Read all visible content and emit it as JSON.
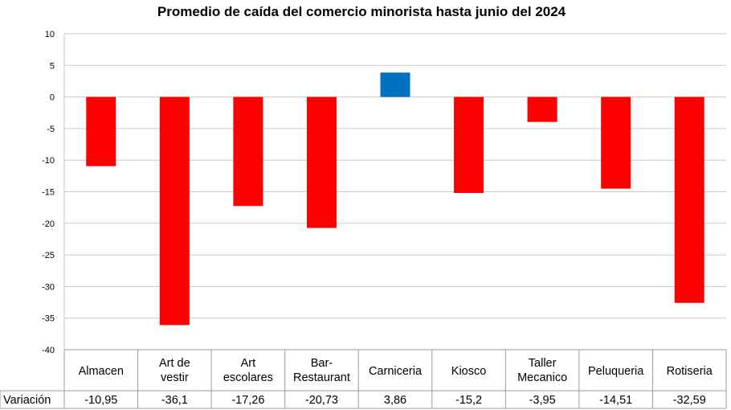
{
  "chart_data": {
    "type": "bar",
    "title": "Promedio de caída del comercio minorista hasta junio del 2024",
    "xlabel": "",
    "ylabel": "",
    "categories": [
      [
        "Almacen"
      ],
      [
        "Art de",
        "vestir"
      ],
      [
        "Art",
        "escolares"
      ],
      [
        "Bar-",
        "Restaurant"
      ],
      [
        "Carniceria"
      ],
      [
        "Kiosco"
      ],
      [
        "Taller",
        "Mecanico"
      ],
      [
        "Peluqueria"
      ],
      [
        "Rotiseria"
      ]
    ],
    "series": [
      {
        "name": "Variación",
        "values": [
          -10.95,
          -36.1,
          -17.26,
          -20.73,
          3.86,
          -15.2,
          -3.95,
          -14.51,
          -32.59
        ],
        "labels": [
          "-10,95",
          "-36,1",
          "-17,26",
          "-20,73",
          "3,86",
          "-15,2",
          "-3,95",
          "-14,51",
          "-32,59"
        ]
      }
    ],
    "ylim": [
      -40,
      10
    ],
    "yticks": [
      10,
      5,
      0,
      -5,
      -10,
      -15,
      -20,
      -25,
      -30,
      -35,
      -40
    ],
    "grid": true,
    "legend": "none",
    "colors": {
      "negative": "#ff0000",
      "positive": "#0070c0"
    }
  }
}
